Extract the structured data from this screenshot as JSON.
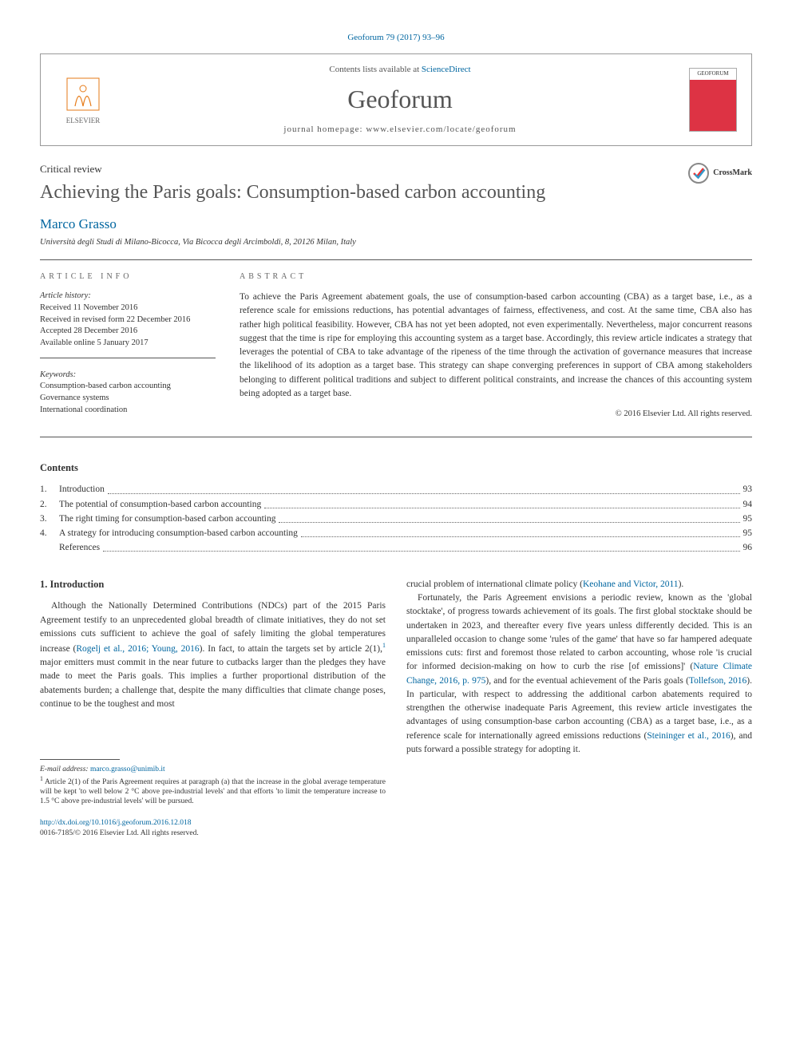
{
  "citation": "Geoforum 79 (2017) 93–96",
  "header": {
    "contents_prefix": "Contents lists available at ",
    "contents_link": "ScienceDirect",
    "journal": "Geoforum",
    "homepage_label": "journal homepage: ",
    "homepage_url": "www.elsevier.com/locate/geoforum",
    "publisher": "ELSEVIER",
    "cover_label": "GEOFORUM"
  },
  "article_type": "Critical review",
  "title": "Achieving the Paris goals: Consumption-based carbon accounting",
  "crossmark": "CrossMark",
  "author": "Marco Grasso",
  "affiliation": "Università degli Studi di Milano-Bicocca, Via Bicocca degli Arcimboldi, 8, 20126 Milan, Italy",
  "info_heading": "ARTICLE INFO",
  "abstract_heading": "ABSTRACT",
  "history": {
    "label": "Article history:",
    "received": "Received 11 November 2016",
    "revised": "Received in revised form 22 December 2016",
    "accepted": "Accepted 28 December 2016",
    "online": "Available online 5 January 2017"
  },
  "keywords": {
    "label": "Keywords:",
    "items": [
      "Consumption-based carbon accounting",
      "Governance systems",
      "International coordination"
    ]
  },
  "abstract": "To achieve the Paris Agreement abatement goals, the use of consumption-based carbon accounting (CBA) as a target base, i.e., as a reference scale for emissions reductions, has potential advantages of fairness, effectiveness, and cost. At the same time, CBA also has rather high political feasibility. However, CBA has not yet been adopted, not even experimentally. Nevertheless, major concurrent reasons suggest that the time is ripe for employing this accounting system as a target base. Accordingly, this review article indicates a strategy that leverages the potential of CBA to take advantage of the ripeness of the time through the activation of governance measures that increase the likelihood of its adoption as a target base. This strategy can shape converging preferences in support of CBA among stakeholders belonging to different political traditions and subject to different political constraints, and increase the chances of this accounting system being adopted as a target base.",
  "copyright_abstract": "© 2016 Elsevier Ltd. All rights reserved.",
  "contents_title": "Contents",
  "toc": [
    {
      "num": "1.",
      "title": "Introduction",
      "page": "93"
    },
    {
      "num": "2.",
      "title": "The potential of consumption-based carbon accounting",
      "page": "94"
    },
    {
      "num": "3.",
      "title": "The right timing for consumption-based carbon accounting",
      "page": "95"
    },
    {
      "num": "4.",
      "title": "A strategy for introducing consumption-based carbon accounting",
      "page": "95"
    },
    {
      "num": "",
      "title": "References",
      "page": "96"
    }
  ],
  "section1_heading": "1. Introduction",
  "p1_1": "Although the Nationally Determined Contributions (NDCs) part of the 2015 Paris Agreement testify to an unprecedented global breadth of climate initiatives, they do not set emissions cuts sufficient to achieve the goal of safely limiting the global temperatures increase (",
  "p1_cite1": "Rogelj et al., 2016; Young, 2016",
  "p1_2": "). In fact, to attain the targets set by article 2(1),",
  "p1_fn": "1",
  "p1_3": " major emitters must commit in the near future to cutbacks larger than the pledges they have made to meet the Paris goals. This implies a further proportional distribution of the abatements burden; a challenge that, despite the many difficulties that climate change poses, continue to be the toughest and most",
  "p2_1": "crucial problem of international climate policy (",
  "p2_cite1": "Keohane and Victor, 2011",
  "p2_2": ").",
  "p3_1": "Fortunately, the Paris Agreement envisions a periodic review, known as the 'global stocktake', of progress towards achievement of its goals. The first global stocktake should be undertaken in 2023, and thereafter every five years unless differently decided. This is an unparalleled occasion to change some 'rules of the game' that have so far hampered adequate emissions cuts: first and foremost those related to carbon accounting, whose role 'is crucial for informed decision-making on how to curb the rise [of emissions]' (",
  "p3_cite1": "Nature Climate Change, 2016, p. 975",
  "p3_2": "), and for the eventual achievement of the Paris goals (",
  "p3_cite2": "Tollefson, 2016",
  "p3_3": "). In particular, with respect to addressing the additional carbon abatements required to strengthen the otherwise inadequate Paris Agreement, this review article investigates the advantages of using consumption-base carbon accounting (CBA) as a target base, i.e., as a reference scale for internationally agreed emissions reductions (",
  "p3_cite3": "Steininger et al., 2016",
  "p3_4": "), and puts forward a possible strategy for adopting it.",
  "footnotes": {
    "email_label": "E-mail address: ",
    "email": "marco.grasso@unimib.it",
    "fn1_num": "1",
    "fn1_text": " Article 2(1) of the Paris Agreement requires at paragraph (a) that the increase in the global average temperature will be kept 'to well below 2 °C above pre-industrial levels' and that efforts 'to limit the temperature increase to 1.5 °C above pre-industrial levels' will be pursued."
  },
  "footer": {
    "doi": "http://dx.doi.org/10.1016/j.geoforum.2016.12.018",
    "issn_line": "0016-7185/© 2016 Elsevier Ltd. All rights reserved."
  },
  "colors": {
    "link": "#0066a0",
    "text": "#333333",
    "rule": "#555555"
  }
}
